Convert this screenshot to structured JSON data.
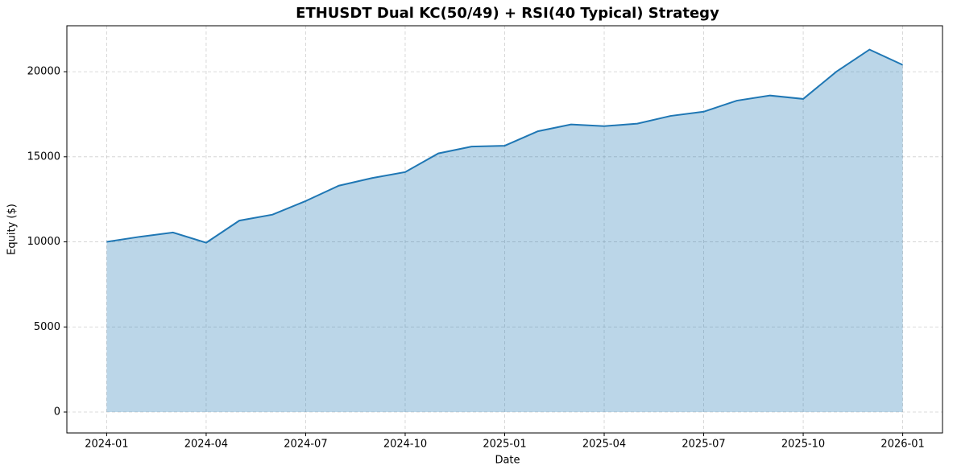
{
  "chart_data": {
    "type": "area_line",
    "title": "ETHUSDT Dual KC(50/49) + RSI(40 Typical) Strategy",
    "xlabel": "Date",
    "ylabel": "Equity ($)",
    "x": [
      "2024-01",
      "2024-02",
      "2024-03",
      "2024-04",
      "2024-05",
      "2024-06",
      "2024-07",
      "2024-08",
      "2024-09",
      "2024-10",
      "2024-11",
      "2024-12",
      "2025-01",
      "2025-02",
      "2025-03",
      "2025-04",
      "2025-05",
      "2025-06",
      "2025-07",
      "2025-08",
      "2025-09",
      "2025-10",
      "2025-11",
      "2025-12",
      "2026-01"
    ],
    "values": [
      10000,
      10300,
      10550,
      9950,
      11250,
      11600,
      12400,
      13300,
      13750,
      14100,
      15200,
      15600,
      15650,
      16500,
      16900,
      16800,
      16950,
      17400,
      17650,
      18300,
      18600,
      18400,
      20000,
      21300,
      20400
    ],
    "color": "#1f77b4",
    "ylim": [
      -1230,
      22700
    ],
    "yticks": [
      0,
      5000,
      10000,
      15000,
      20000
    ],
    "xticks": [
      "2024-01",
      "2024-04",
      "2024-07",
      "2024-10",
      "2025-01",
      "2025-04",
      "2025-07",
      "2025-10",
      "2026-01"
    ],
    "grid": true
  }
}
